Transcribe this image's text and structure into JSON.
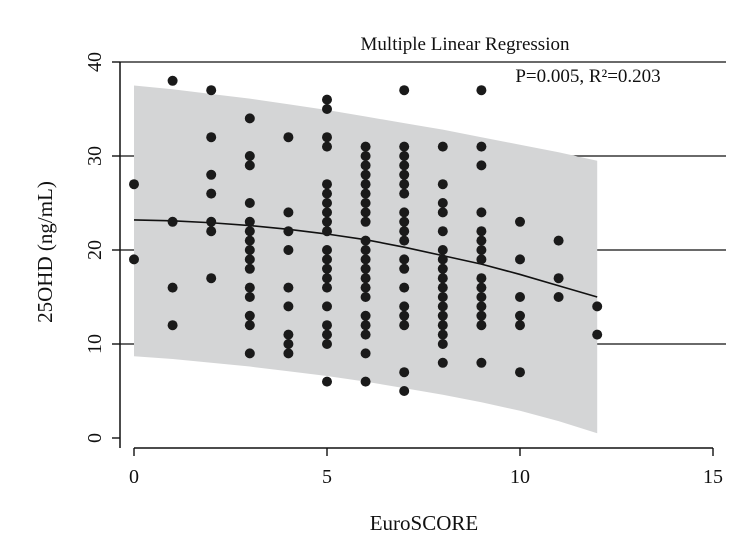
{
  "chart_data": {
    "type": "scatter",
    "title": "Multiple Linear Regression",
    "annotation": "P=0.005, R²=0.203",
    "xlabel": "EuroSCORE",
    "ylabel": "25OHD (ng/mL)",
    "xlim": [
      0,
      15
    ],
    "ylim": [
      0,
      40
    ],
    "xticks": [
      "0",
      "5",
      "10",
      "15"
    ],
    "yticks": [
      "0",
      "10",
      "20",
      "30",
      "40"
    ],
    "grid": "horizontal",
    "points": {
      "0": [
        27,
        19
      ],
      "1": [
        38,
        23,
        16,
        12
      ],
      "2": [
        37,
        32,
        28,
        26,
        23,
        22,
        17
      ],
      "3": [
        34,
        30,
        29,
        25,
        23,
        22,
        21,
        20,
        19,
        18,
        16,
        15,
        13,
        12,
        9
      ],
      "4": [
        32,
        24,
        22,
        20,
        16,
        14,
        11,
        10,
        9
      ],
      "5": [
        36,
        35,
        32,
        31,
        27,
        26,
        25,
        24,
        23,
        22,
        20,
        19,
        18,
        17,
        16,
        14,
        12,
        11,
        10,
        6
      ],
      "6": [
        31,
        30,
        29,
        28,
        27,
        26,
        25,
        24,
        23,
        21,
        20,
        19,
        18,
        17,
        16,
        15,
        13,
        12,
        11,
        9,
        6
      ],
      "7": [
        37,
        31,
        30,
        29,
        28,
        27,
        26,
        24,
        23,
        22,
        21,
        19,
        18,
        16,
        14,
        13,
        12,
        7,
        5
      ],
      "8": [
        31,
        27,
        25,
        24,
        22,
        20,
        19,
        18,
        17,
        16,
        15,
        14,
        13,
        12,
        11,
        10,
        8
      ],
      "9": [
        37,
        31,
        29,
        24,
        22,
        21,
        20,
        19,
        17,
        16,
        15,
        14,
        13,
        12,
        8
      ],
      "10": [
        23,
        19,
        15,
        13,
        12,
        7
      ],
      "11": [
        21,
        17,
        15
      ],
      "12": [
        14,
        11
      ]
    },
    "fit": {
      "x": [
        0,
        1,
        2,
        3,
        4,
        5,
        6,
        7,
        8,
        9,
        10,
        11,
        12
      ],
      "y": [
        23.2,
        23.1,
        22.9,
        22.6,
        22.2,
        21.7,
        21.1,
        20.3,
        19.4,
        18.5,
        17.4,
        16.2,
        15.0
      ],
      "upper": [
        37.5,
        37.1,
        36.6,
        36.1,
        35.5,
        34.9,
        34.2,
        33.5,
        32.8,
        32.0,
        31.2,
        30.4,
        29.5
      ],
      "lower": [
        8.7,
        8.4,
        8.0,
        7.6,
        7.1,
        6.6,
        6.0,
        5.3,
        4.6,
        3.8,
        2.9,
        1.8,
        0.5
      ]
    },
    "band_color": "#d4d5d6",
    "point_color": "#1a1a1a"
  }
}
